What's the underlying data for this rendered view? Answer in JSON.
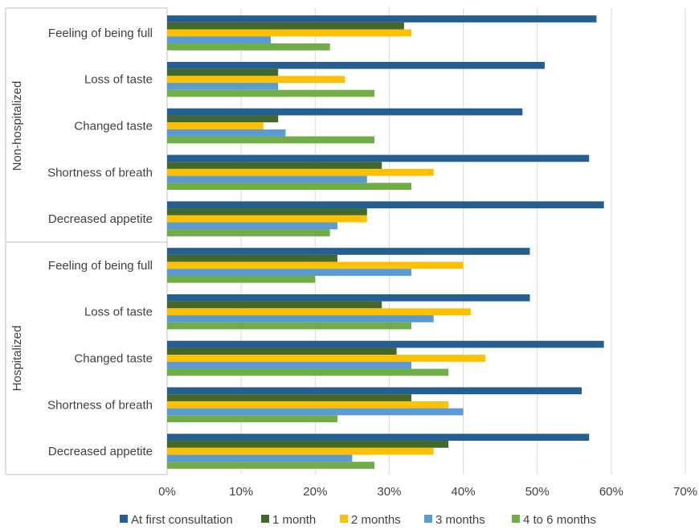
{
  "chart_data": {
    "type": "bar",
    "orientation": "horizontal",
    "title": "",
    "xlabel": "",
    "ylabel": "",
    "xlim": [
      0,
      70
    ],
    "x_ticks": [
      0,
      10,
      20,
      30,
      40,
      50,
      60,
      70
    ],
    "x_tick_format": "%",
    "grid": true,
    "legend_position": "bottom",
    "groups": [
      {
        "label": "Non-hospitalized",
        "categories": [
          "Feeling of being full",
          "Loss of taste",
          "Changed taste",
          "Shortness of breath",
          "Decreased appetite"
        ]
      },
      {
        "label": "Hospitalized",
        "categories": [
          "Feeling of being full",
          "Loss of taste",
          "Changed taste",
          "Shortness of breath",
          "Decreased appetite"
        ]
      }
    ],
    "series": [
      {
        "name": "At first consultation",
        "color": "#255e91",
        "values": [
          58,
          51,
          48,
          57,
          59,
          49,
          49,
          59,
          56,
          57
        ]
      },
      {
        "name": "1 month",
        "color": "#43682b",
        "values": [
          32,
          15,
          15,
          29,
          27,
          23,
          29,
          31,
          33,
          38
        ]
      },
      {
        "name": "2 months",
        "color": "#ffc000",
        "values": [
          33,
          24,
          13,
          36,
          27,
          40,
          41,
          43,
          38,
          36
        ]
      },
      {
        "name": "3 months",
        "color": "#5b9bd5",
        "values": [
          14,
          15,
          16,
          27,
          23,
          33,
          36,
          33,
          40,
          25
        ]
      },
      {
        "name": "4 to 6 months",
        "color": "#70ad47",
        "values": [
          22,
          28,
          28,
          33,
          22,
          20,
          33,
          38,
          23,
          28
        ]
      }
    ]
  }
}
